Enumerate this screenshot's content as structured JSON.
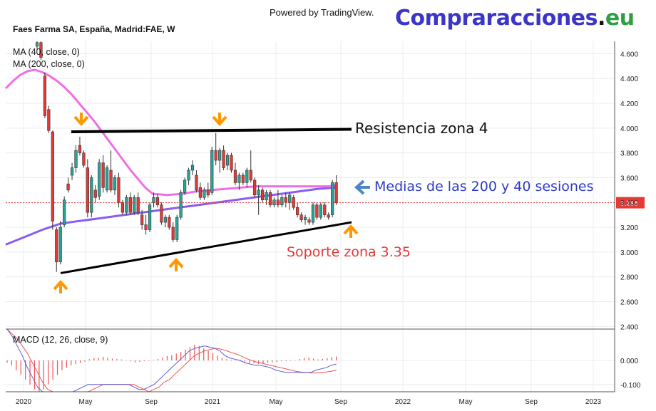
{
  "header": {
    "powered_by": "Powered by TradingView.",
    "brand_main": "Compraracciones",
    "brand_dot": ".",
    "brand_tld": "eu",
    "symbol": "Faes Farma SA, España, Madrid:FAE, W",
    "ma40_label": "MA (40, close, 0)",
    "ma200_label": "MA (200, close, 0)",
    "macd_label": "MACD (12, 26, close, 9)"
  },
  "annotations": {
    "resistance": "Resistencia zona 4",
    "averages": "Medias de las 200 y 40 sesiones",
    "support": "Soporte zona 3.35"
  },
  "colors": {
    "up": "#26a69a",
    "down": "#e53935",
    "ma40": "#f06ee6",
    "ma200": "#8a5cf0",
    "arrow": "#ff9800",
    "blue_arrow": "#4a86c8",
    "support_text": "#e53935",
    "averages_text": "#2f3bc2",
    "macd_hist": "#ef5350",
    "macd_line": "#5b5bd6",
    "signal_line": "#ef5350",
    "price_line": "#e53935",
    "grid": "#e8ecf2"
  },
  "chart_data": [
    {
      "type": "candlestick",
      "title": "Faes Farma SA, España, Madrid:FAE, W",
      "y_ticks": [
        "2.400",
        "2.600",
        "2.800",
        "3.000",
        "3.200",
        "3.400",
        "3.600",
        "3.800",
        "4.000",
        "4.200",
        "4.400",
        "4.600"
      ],
      "ylim": [
        2.39,
        4.7
      ],
      "x_ticks": [
        "2020",
        "May",
        "Sep",
        "2021",
        "May",
        "Sep",
        "2022",
        "May",
        "Sep",
        "2023"
      ],
      "last_price": "3.398",
      "candles": [
        {
          "o": 4.66,
          "h": 4.7,
          "l": 4.63,
          "c": 4.69
        },
        {
          "o": 4.69,
          "h": 4.7,
          "l": 4.55,
          "c": 4.57
        },
        {
          "o": 4.42,
          "h": 4.45,
          "l": 4.08,
          "c": 4.1
        },
        {
          "o": 4.15,
          "h": 4.18,
          "l": 3.96,
          "c": 3.98
        },
        {
          "o": 3.97,
          "h": 3.98,
          "l": 3.18,
          "c": 3.25
        },
        {
          "o": 3.18,
          "h": 3.2,
          "l": 2.84,
          "c": 2.92
        },
        {
          "o": 2.92,
          "h": 3.25,
          "l": 2.9,
          "c": 3.2
        },
        {
          "o": 3.22,
          "h": 3.45,
          "l": 3.2,
          "c": 3.42
        },
        {
          "o": 3.55,
          "h": 3.6,
          "l": 3.48,
          "c": 3.5
        },
        {
          "o": 3.62,
          "h": 3.72,
          "l": 3.58,
          "c": 3.68
        },
        {
          "o": 3.68,
          "h": 3.86,
          "l": 3.64,
          "c": 3.82
        },
        {
          "o": 3.86,
          "h": 3.93,
          "l": 3.78,
          "c": 3.8
        },
        {
          "o": 3.8,
          "h": 3.82,
          "l": 3.68,
          "c": 3.7
        },
        {
          "o": 3.68,
          "h": 3.75,
          "l": 3.28,
          "c": 3.32
        },
        {
          "o": 3.32,
          "h": 3.62,
          "l": 3.28,
          "c": 3.6
        },
        {
          "o": 3.5,
          "h": 3.54,
          "l": 3.4,
          "c": 3.44
        },
        {
          "o": 3.45,
          "h": 3.75,
          "l": 3.42,
          "c": 3.72
        },
        {
          "o": 3.72,
          "h": 3.78,
          "l": 3.48,
          "c": 3.52
        },
        {
          "o": 3.5,
          "h": 3.7,
          "l": 3.48,
          "c": 3.68
        },
        {
          "o": 3.66,
          "h": 3.82,
          "l": 3.48,
          "c": 3.5
        },
        {
          "o": 3.5,
          "h": 3.62,
          "l": 3.46,
          "c": 3.6
        },
        {
          "o": 3.6,
          "h": 3.64,
          "l": 3.36,
          "c": 3.4
        },
        {
          "o": 3.4,
          "h": 3.42,
          "l": 3.3,
          "c": 3.32
        },
        {
          "o": 3.32,
          "h": 3.46,
          "l": 3.3,
          "c": 3.44
        },
        {
          "o": 3.44,
          "h": 3.48,
          "l": 3.3,
          "c": 3.32
        },
        {
          "o": 3.32,
          "h": 3.46,
          "l": 3.3,
          "c": 3.44
        },
        {
          "o": 3.44,
          "h": 3.48,
          "l": 3.3,
          "c": 3.32
        },
        {
          "o": 3.3,
          "h": 3.34,
          "l": 3.18,
          "c": 3.22
        },
        {
          "o": 3.22,
          "h": 3.3,
          "l": 3.14,
          "c": 3.18
        },
        {
          "o": 3.18,
          "h": 3.4,
          "l": 3.16,
          "c": 3.38
        },
        {
          "o": 3.4,
          "h": 3.48,
          "l": 3.36,
          "c": 3.44
        },
        {
          "o": 3.44,
          "h": 3.47,
          "l": 3.36,
          "c": 3.38
        },
        {
          "o": 3.38,
          "h": 3.4,
          "l": 3.22,
          "c": 3.24
        },
        {
          "o": 3.24,
          "h": 3.3,
          "l": 3.2,
          "c": 3.28
        },
        {
          "o": 3.28,
          "h": 3.3,
          "l": 3.18,
          "c": 3.2
        },
        {
          "o": 3.2,
          "h": 3.24,
          "l": 3.08,
          "c": 3.1
        },
        {
          "o": 3.1,
          "h": 3.3,
          "l": 3.08,
          "c": 3.28
        },
        {
          "o": 3.28,
          "h": 3.5,
          "l": 3.26,
          "c": 3.48
        },
        {
          "o": 3.48,
          "h": 3.6,
          "l": 3.46,
          "c": 3.58
        },
        {
          "o": 3.58,
          "h": 3.68,
          "l": 3.54,
          "c": 3.66
        },
        {
          "o": 3.66,
          "h": 3.74,
          "l": 3.62,
          "c": 3.7
        },
        {
          "o": 3.62,
          "h": 3.66,
          "l": 3.48,
          "c": 3.5
        },
        {
          "o": 3.52,
          "h": 3.56,
          "l": 3.42,
          "c": 3.44
        },
        {
          "o": 3.44,
          "h": 3.52,
          "l": 3.42,
          "c": 3.5
        },
        {
          "o": 3.5,
          "h": 3.56,
          "l": 3.44,
          "c": 3.46
        },
        {
          "o": 3.48,
          "h": 3.85,
          "l": 3.46,
          "c": 3.82
        },
        {
          "o": 3.82,
          "h": 3.96,
          "l": 3.7,
          "c": 3.74
        },
        {
          "o": 3.74,
          "h": 3.84,
          "l": 3.64,
          "c": 3.82
        },
        {
          "o": 3.82,
          "h": 3.86,
          "l": 3.66,
          "c": 3.68
        },
        {
          "o": 3.7,
          "h": 3.8,
          "l": 3.66,
          "c": 3.78
        },
        {
          "o": 3.78,
          "h": 3.8,
          "l": 3.64,
          "c": 3.66
        },
        {
          "o": 3.66,
          "h": 3.72,
          "l": 3.54,
          "c": 3.56
        },
        {
          "o": 3.56,
          "h": 3.64,
          "l": 3.5,
          "c": 3.62
        },
        {
          "o": 3.62,
          "h": 3.64,
          "l": 3.54,
          "c": 3.56
        },
        {
          "o": 3.56,
          "h": 3.68,
          "l": 3.52,
          "c": 3.66
        },
        {
          "o": 3.66,
          "h": 3.82,
          "l": 3.56,
          "c": 3.58
        },
        {
          "o": 3.58,
          "h": 3.6,
          "l": 3.44,
          "c": 3.46
        },
        {
          "o": 3.46,
          "h": 3.54,
          "l": 3.3,
          "c": 3.5
        },
        {
          "o": 3.5,
          "h": 3.52,
          "l": 3.4,
          "c": 3.42
        },
        {
          "o": 3.42,
          "h": 3.5,
          "l": 3.38,
          "c": 3.48
        },
        {
          "o": 3.48,
          "h": 3.5,
          "l": 3.36,
          "c": 3.38
        },
        {
          "o": 3.38,
          "h": 3.44,
          "l": 3.36,
          "c": 3.42
        },
        {
          "o": 3.42,
          "h": 3.5,
          "l": 3.36,
          "c": 3.38
        },
        {
          "o": 3.38,
          "h": 3.46,
          "l": 3.36,
          "c": 3.44
        },
        {
          "o": 3.44,
          "h": 3.48,
          "l": 3.36,
          "c": 3.4
        },
        {
          "o": 3.4,
          "h": 3.48,
          "l": 3.34,
          "c": 3.46
        },
        {
          "o": 3.44,
          "h": 3.46,
          "l": 3.34,
          "c": 3.36
        },
        {
          "o": 3.36,
          "h": 3.4,
          "l": 3.28,
          "c": 3.3
        },
        {
          "o": 3.3,
          "h": 3.32,
          "l": 3.24,
          "c": 3.26
        },
        {
          "o": 3.26,
          "h": 3.3,
          "l": 3.22,
          "c": 3.28
        },
        {
          "o": 3.26,
          "h": 3.28,
          "l": 3.22,
          "c": 3.24
        },
        {
          "o": 3.24,
          "h": 3.4,
          "l": 3.22,
          "c": 3.38
        },
        {
          "o": 3.38,
          "h": 3.4,
          "l": 3.26,
          "c": 3.28
        },
        {
          "o": 3.28,
          "h": 3.4,
          "l": 3.26,
          "c": 3.38
        },
        {
          "o": 3.38,
          "h": 3.4,
          "l": 3.28,
          "c": 3.3
        },
        {
          "o": 3.3,
          "h": 3.32,
          "l": 3.26,
          "c": 3.28
        },
        {
          "o": 3.3,
          "h": 3.58,
          "l": 3.28,
          "c": 3.56
        },
        {
          "o": 3.56,
          "h": 3.62,
          "l": 3.38,
          "c": 3.398
        }
      ],
      "ma40": [
        4.32,
        4.38,
        4.43,
        4.46,
        4.47,
        4.45,
        4.42,
        4.38,
        4.33,
        4.27,
        4.2,
        4.13,
        4.06,
        3.98,
        3.9,
        3.82,
        3.74,
        3.66,
        3.59,
        3.52,
        3.47,
        3.46,
        3.47,
        3.49,
        3.5,
        3.51,
        3.52,
        3.53,
        3.53,
        3.53,
        3.53,
        3.53,
        3.53,
        3.53,
        3.54
      ],
      "ma40_x": [
        0,
        2,
        4,
        6,
        8,
        10,
        12,
        14,
        16,
        18,
        20,
        22,
        24,
        26,
        28,
        30,
        32,
        34,
        36,
        38,
        40,
        44,
        48,
        52,
        56,
        60,
        64,
        68,
        72,
        76,
        80,
        84,
        86,
        88,
        90
      ],
      "ma200": [
        3.06,
        3.12,
        3.18,
        3.23,
        3.25,
        3.27,
        3.29,
        3.31,
        3.33,
        3.35,
        3.37,
        3.39,
        3.41,
        3.43,
        3.45,
        3.47,
        3.49,
        3.51,
        3.52
      ],
      "macd": {
        "y_ticks": [
          "0.000",
          "-0.100"
        ],
        "ylim": [
          -0.13,
          0.13
        ],
        "hist": [
          -0.01,
          -0.02,
          -0.04,
          -0.06,
          -0.08,
          -0.1,
          -0.12,
          -0.13,
          -0.12,
          -0.1,
          -0.08,
          -0.06,
          -0.04,
          -0.03,
          -0.02,
          -0.015,
          -0.01,
          -0.005,
          0.005,
          0.01,
          0.01,
          0.015,
          0.01,
          0.008,
          0.006,
          0.004,
          0.002,
          -0.004,
          -0.008,
          -0.006,
          -0.003,
          -0.002,
          0.002,
          0.006,
          0.012,
          0.018,
          0.022,
          0.028,
          0.035,
          0.045,
          0.055,
          0.065,
          0.06,
          0.05,
          0.04,
          0.03,
          0.02,
          0.01,
          0.005,
          0.003,
          0.002,
          -0.004,
          -0.008,
          -0.01,
          -0.012,
          -0.015,
          -0.012,
          -0.01,
          -0.008,
          -0.006,
          -0.004,
          -0.003,
          -0.002,
          0.002,
          0.006,
          0.01,
          0.012,
          0.008,
          0.004,
          0.006,
          0.01,
          0.014,
          0.016
        ],
        "macd_line": [
          0.13,
          0.1,
          0.06,
          0.02,
          -0.03,
          -0.07,
          -0.11,
          -0.14,
          -0.17,
          -0.19,
          -0.19,
          -0.17,
          -0.15,
          -0.13,
          -0.12,
          -0.11,
          -0.1,
          -0.1,
          -0.1,
          -0.1,
          -0.1,
          -0.1,
          -0.1,
          -0.1,
          -0.1,
          -0.11,
          -0.12,
          -0.12,
          -0.11,
          -0.1,
          -0.08,
          -0.06,
          -0.04,
          -0.02,
          0.0,
          0.02,
          0.04,
          0.05,
          0.055,
          0.06,
          0.055,
          0.05,
          0.04,
          0.02,
          0.01,
          0.005,
          0.0,
          -0.01,
          -0.015,
          -0.02,
          -0.02,
          -0.025,
          -0.03,
          -0.04,
          -0.045,
          -0.05,
          -0.05,
          -0.05,
          -0.05,
          -0.05,
          -0.05,
          -0.04,
          -0.035,
          -0.03,
          -0.02,
          -0.015
        ],
        "signal_line": [
          0.13,
          0.11,
          0.09,
          0.06,
          0.03,
          -0.01,
          -0.05,
          -0.09,
          -0.12,
          -0.14,
          -0.16,
          -0.17,
          -0.17,
          -0.16,
          -0.15,
          -0.14,
          -0.13,
          -0.12,
          -0.11,
          -0.1,
          -0.1,
          -0.1,
          -0.1,
          -0.1,
          -0.1,
          -0.1,
          -0.11,
          -0.12,
          -0.13,
          -0.12,
          -0.11,
          -0.09,
          -0.08,
          -0.06,
          -0.04,
          -0.02,
          0.0,
          0.02,
          0.03,
          0.04,
          0.045,
          0.05,
          0.048,
          0.042,
          0.035,
          0.028,
          0.02,
          0.01,
          0.002,
          -0.005,
          -0.01,
          -0.015,
          -0.02,
          -0.025,
          -0.03,
          -0.035,
          -0.04,
          -0.045,
          -0.048,
          -0.05,
          -0.052,
          -0.052,
          -0.05,
          -0.048,
          -0.045,
          -0.04
        ]
      }
    }
  ]
}
